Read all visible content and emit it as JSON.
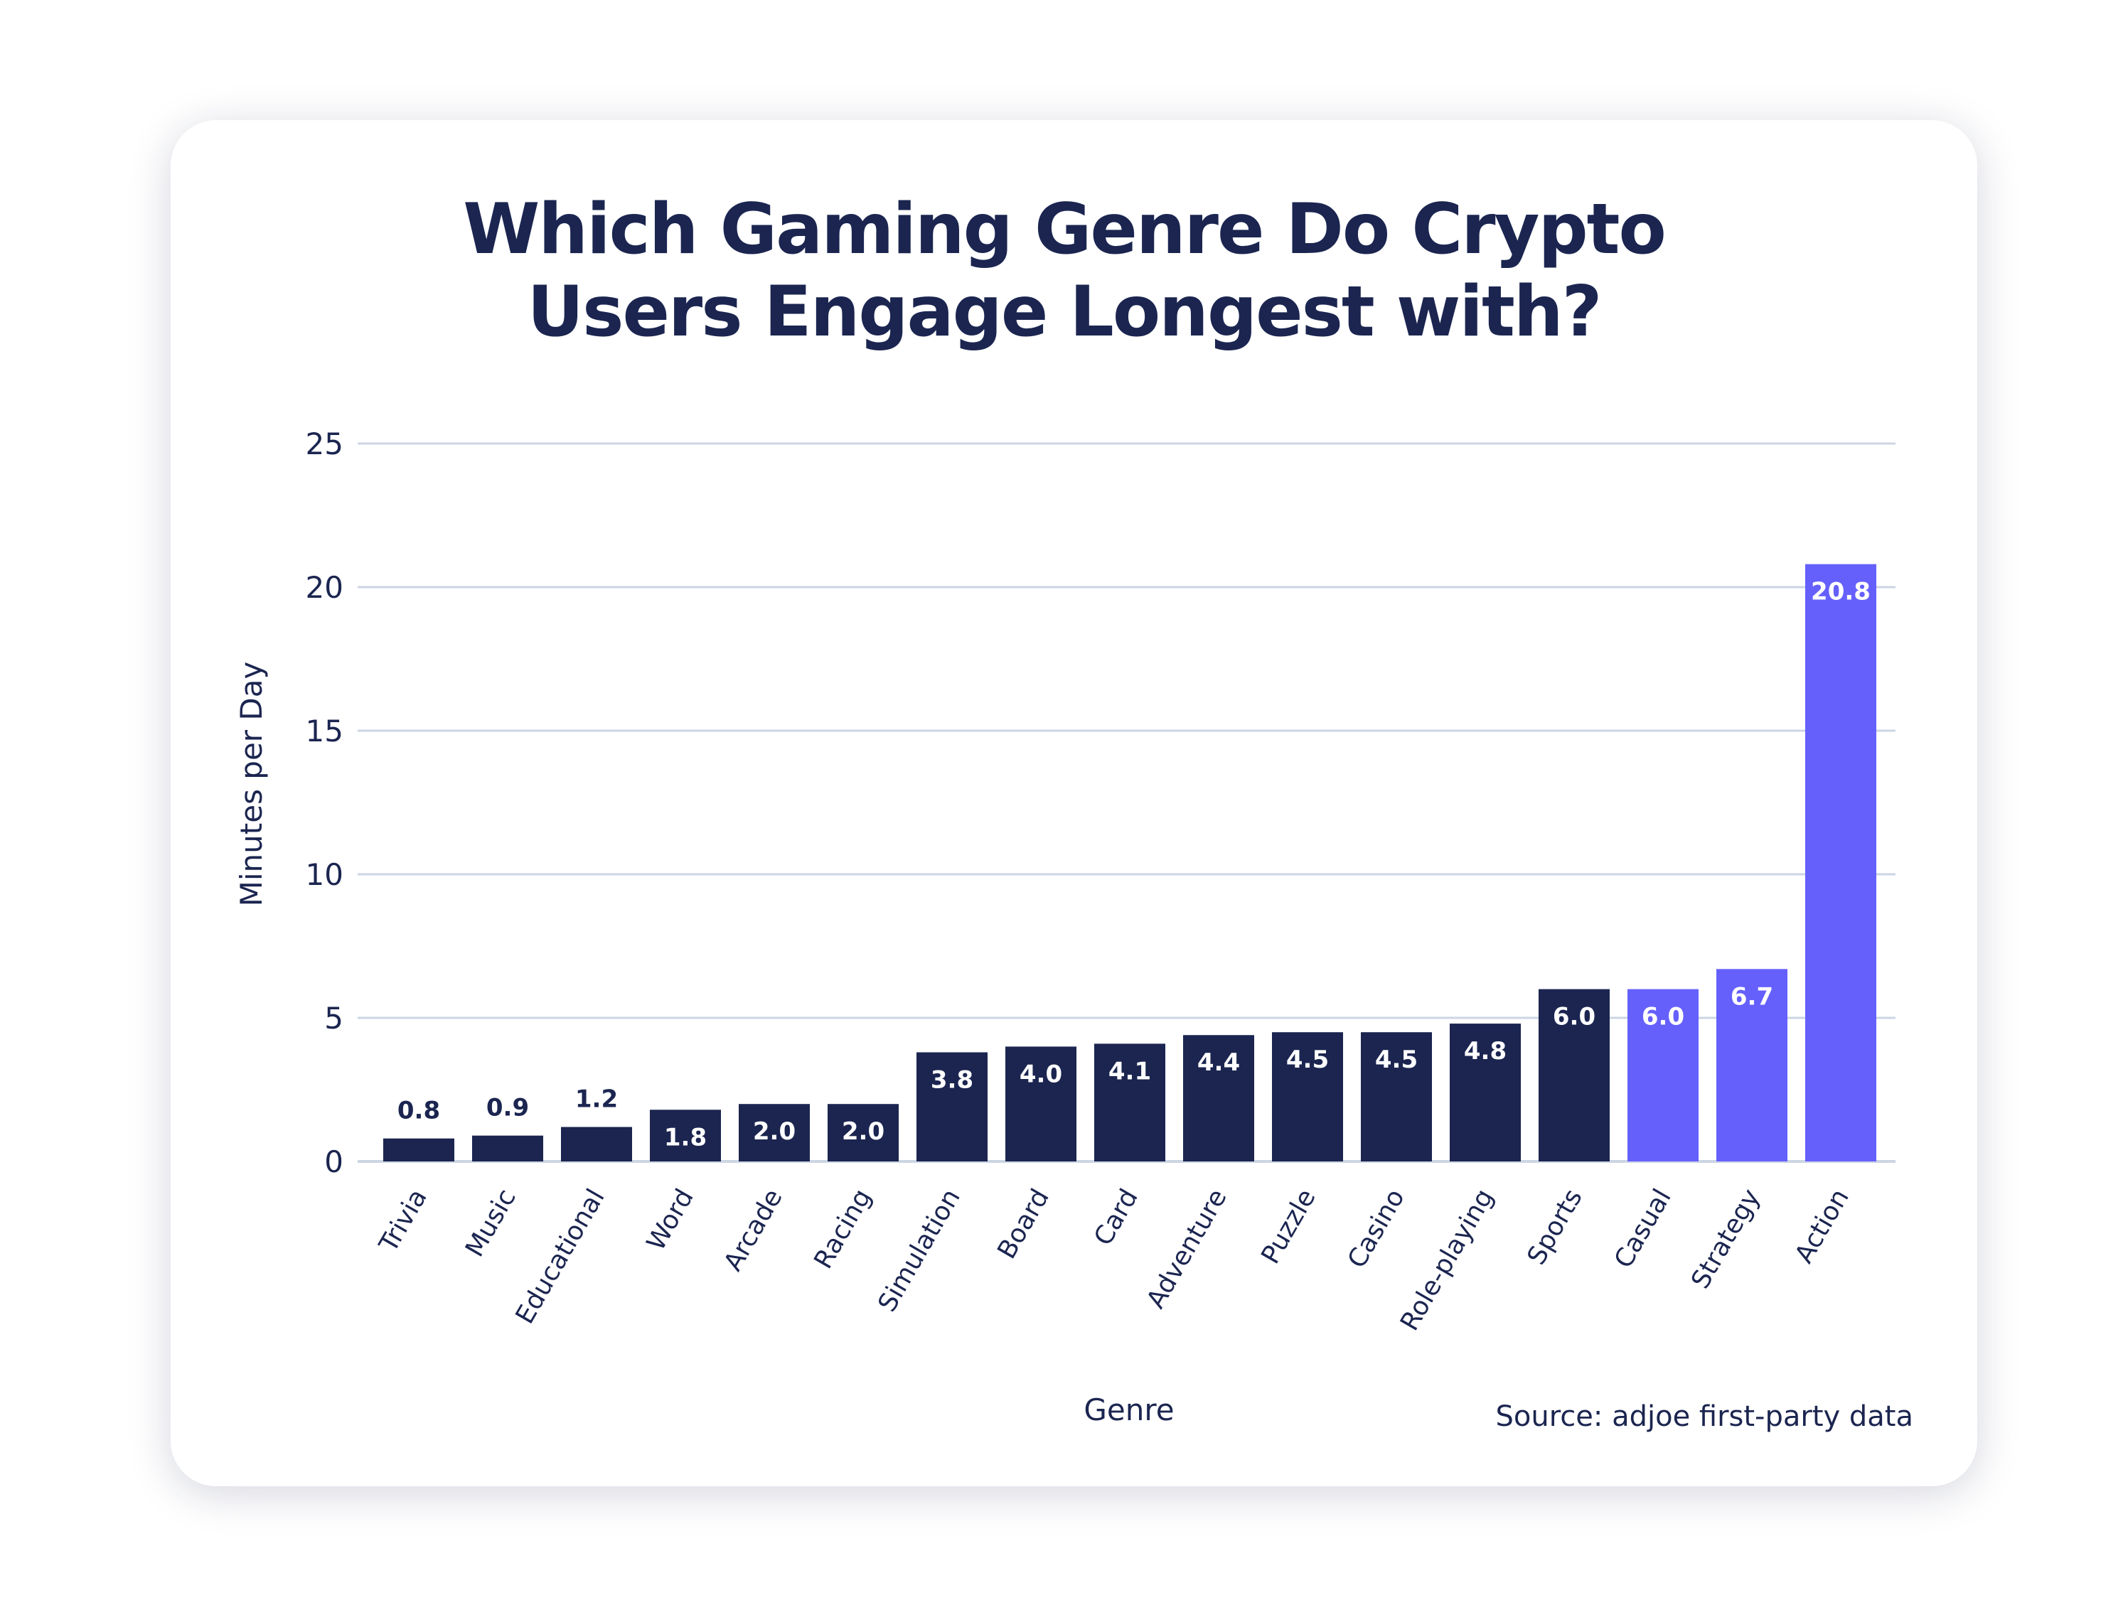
{
  "chart_data": {
    "type": "bar",
    "title_lines": [
      "Which Gaming Genre Do Crypto",
      "Users Engage Longest with?"
    ],
    "xlabel": "Genre",
    "ylabel": "Minutes per Day",
    "source": "Source: adjoe first-party data",
    "categories": [
      "Trivia",
      "Music",
      "Educational",
      "Word",
      "Arcade",
      "Racing",
      "Simulation",
      "Board",
      "Card",
      "Adventure",
      "Puzzle",
      "Casino",
      "Role-playing",
      "Sports",
      "Casual",
      "Strategy",
      "Action"
    ],
    "values": [
      0.8,
      0.9,
      1.2,
      1.8,
      2.0,
      2.0,
      3.8,
      4.0,
      4.1,
      4.4,
      4.5,
      4.5,
      4.8,
      6.0,
      6.0,
      6.7,
      20.8
    ],
    "value_labels": [
      "0.8",
      "0.9",
      "1.2",
      "1.8",
      "2.0",
      "2.0",
      "3.8",
      "4.0",
      "4.1",
      "4.4",
      "4.5",
      "4.5",
      "4.8",
      "6.0",
      "6.0",
      "6.7",
      "20.8"
    ],
    "highlighted": [
      "Casual",
      "Strategy",
      "Action"
    ],
    "ylim": [
      0,
      25
    ],
    "yticks": [
      0,
      5,
      10,
      15,
      20,
      25
    ],
    "grid": true,
    "colors": {
      "default": "#1b2550",
      "highlight": "#6560fc",
      "grid": "#ccd5e3",
      "text": "#1b2550"
    }
  }
}
